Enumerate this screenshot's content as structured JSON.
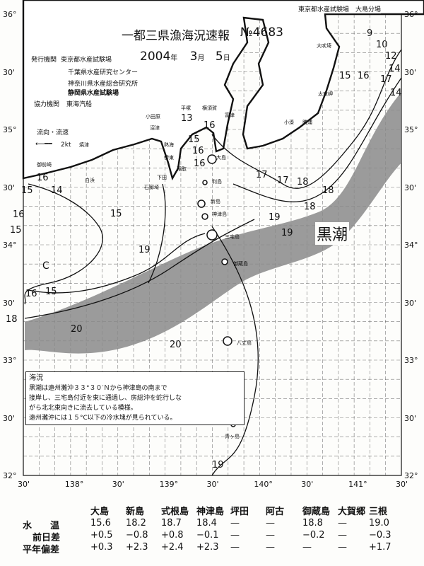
{
  "header": {
    "title": "一都三県漁海況速報",
    "issue_no": "№4683",
    "date": {
      "year": "2004",
      "year_unit": "年",
      "month": "3",
      "month_unit": "月",
      "day": "5",
      "day_unit": "日"
    },
    "publisher_label": "発行機関",
    "publishers": [
      "東京都水産試験場",
      "千葉県水産研究センター",
      "神奈川県水産総合研究所",
      "静岡県水産試験場"
    ],
    "cooperator_label": "協力機関",
    "cooperator": "東海汽船",
    "stamp": "東京都水産試験場　大島分場"
  },
  "legend": {
    "current_label": "流向・流速",
    "speed": "2kt"
  },
  "map": {
    "lat_labels": [
      "36°",
      "30'",
      "35°",
      "30'",
      "34°",
      "30'",
      "33°",
      "30'",
      "32°"
    ],
    "lon_labels": [
      "30'",
      "138°",
      "30'",
      "139°",
      "30'",
      "140°",
      "30'",
      "141°",
      "30'"
    ],
    "kuroshio_label": "黒潮",
    "cold_label": "C",
    "colors": {
      "kuroshio": "#8a8a8a",
      "line": "#111111",
      "paper": "#fdfdfb"
    },
    "isotherms": [
      "9",
      "10",
      "12",
      "14",
      "15",
      "16",
      "17",
      "14",
      "15",
      "16",
      "13",
      "15",
      "16",
      "16",
      "17",
      "18",
      "19",
      "18",
      "19",
      "15",
      "16",
      "17",
      "18",
      "19",
      "20",
      "20",
      "19",
      "16",
      "15",
      "14",
      "16",
      "15",
      "18"
    ],
    "places": [
      "大吠埼",
      "平塚",
      "横須賀",
      "富津",
      "太東岬",
      "小湊",
      "勝浦",
      "小田原",
      "熱海",
      "伊東",
      "沼津",
      "焼津",
      "稲取",
      "下田",
      "御前崎",
      "石廊埼",
      "大島",
      "利島",
      "新島",
      "神津島",
      "三宅島",
      "御蔵島",
      "八丈島",
      "青ヶ島",
      "白浜"
    ]
  },
  "summary": {
    "title": "海況",
    "lines": [
      "黒潮は遠州灘沖３３°３０′Ｎから神津島の南まで",
      "接岸し、三宅島付近を東に通過し、房総沖を蛇行しな",
      "がら北北東向きに流去している模様。",
      "遠州灘沖には１５°C以下の冷水塊が見られている。"
    ]
  },
  "table": {
    "columns": [
      "大島",
      "新島",
      "式根島",
      "神津島",
      "坪田",
      "阿古",
      "御蔵島",
      "大賀郷",
      "三根"
    ],
    "rows": [
      {
        "label": "水　　温",
        "values": [
          "15.6",
          "18.2",
          "18.7",
          "18.4",
          "—",
          "—",
          "18.8",
          "—",
          "19.0"
        ]
      },
      {
        "label": "前日差",
        "values": [
          "+0.5",
          "−0.8",
          "+0.8",
          "−0.1",
          "—",
          "—",
          "−0.2",
          "—",
          "−0.3"
        ]
      },
      {
        "label": "平年偏差",
        "values": [
          "+0.3",
          "+2.3",
          "+2.4",
          "+2.3",
          "—",
          "—",
          "—",
          "—",
          "+1.7"
        ]
      }
    ]
  }
}
